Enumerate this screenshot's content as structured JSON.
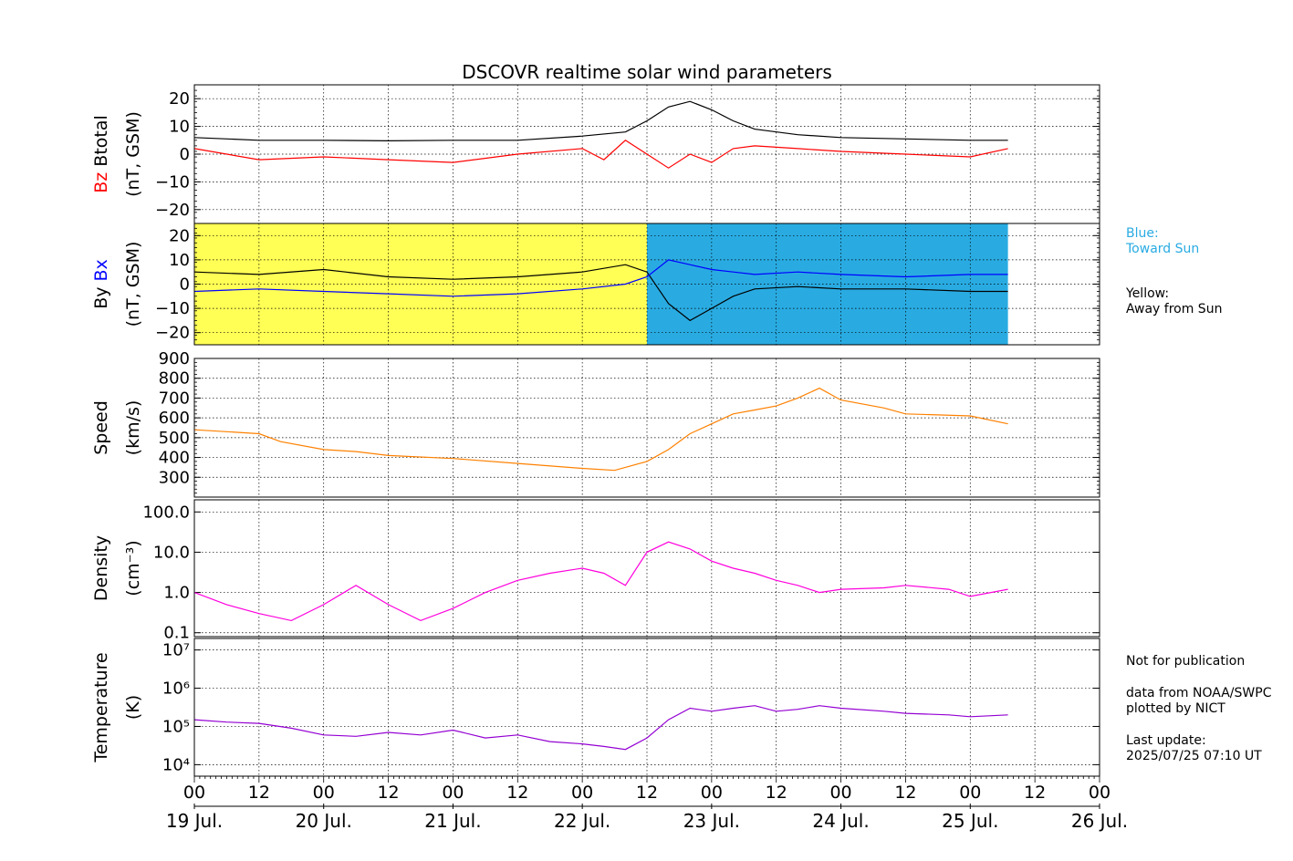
{
  "chart_data": {
    "type": "line",
    "title": "DSCOVR realtime solar wind parameters",
    "x_range_hours": [
      0,
      168
    ],
    "x_tick_labels": [
      "00",
      "12",
      "00",
      "12",
      "00",
      "12",
      "00",
      "12",
      "00",
      "12",
      "00",
      "12",
      "00",
      "12",
      "00"
    ],
    "x_date_labels": [
      "19 Jul.",
      "20 Jul.",
      "21 Jul.",
      "22 Jul.",
      "23 Jul.",
      "24 Jul.",
      "25 Jul.",
      "26 Jul."
    ],
    "data_end_hours": 151,
    "panels": [
      {
        "id": "btotal-bz",
        "ylabel_parts": [
          {
            "text": "Bz",
            "color": "#ff0000"
          },
          {
            "text": " Btotal",
            "color": "#000000"
          }
        ],
        "ylabel_unit": "(nT, GSM)",
        "scale": "linear",
        "ylim": [
          -25,
          25
        ],
        "yticks": [
          20,
          10,
          0,
          -10,
          -20
        ],
        "ytick_labels": [
          "20",
          "10",
          "0",
          "−10",
          "−20"
        ],
        "series": [
          {
            "color": "#000000",
            "points": [
              [
                0,
                6
              ],
              [
                12,
                5
              ],
              [
                24,
                5
              ],
              [
                36,
                4.8
              ],
              [
                48,
                5
              ],
              [
                60,
                5
              ],
              [
                72,
                6.5
              ],
              [
                80,
                8
              ],
              [
                84,
                12
              ],
              [
                88,
                17
              ],
              [
                92,
                19
              ],
              [
                96,
                16
              ],
              [
                100,
                12
              ],
              [
                104,
                9
              ],
              [
                112,
                7
              ],
              [
                120,
                6
              ],
              [
                132,
                5.5
              ],
              [
                144,
                5
              ],
              [
                151,
                5
              ]
            ]
          },
          {
            "color": "#ff0000",
            "points": [
              [
                0,
                2
              ],
              [
                12,
                -2
              ],
              [
                24,
                -1
              ],
              [
                36,
                -2
              ],
              [
                48,
                -3
              ],
              [
                60,
                0
              ],
              [
                72,
                2
              ],
              [
                76,
                -2
              ],
              [
                80,
                5
              ],
              [
                84,
                0
              ],
              [
                88,
                -5
              ],
              [
                92,
                0
              ],
              [
                96,
                -3
              ],
              [
                100,
                2
              ],
              [
                104,
                3
              ],
              [
                112,
                2
              ],
              [
                120,
                1
              ],
              [
                132,
                0
              ],
              [
                144,
                -1
              ],
              [
                151,
                2
              ]
            ]
          }
        ]
      },
      {
        "id": "by-bx",
        "ylabel_parts": [
          {
            "text": "By",
            "color": "#000000"
          },
          {
            "text": " Bx",
            "color": "#0000ff"
          }
        ],
        "ylabel_unit": "(nT, GSM)",
        "scale": "linear",
        "ylim": [
          -25,
          25
        ],
        "yticks": [
          20,
          10,
          0,
          -10,
          -20
        ],
        "ytick_labels": [
          "20",
          "10",
          "0",
          "−10",
          "−20"
        ],
        "sector_bands": [
          {
            "from": 0,
            "to": 84,
            "color": "#ffff55"
          },
          {
            "from": 84,
            "to": 151,
            "color": "#29abe2"
          }
        ],
        "series": [
          {
            "color": "#000000",
            "points": [
              [
                0,
                5
              ],
              [
                12,
                4
              ],
              [
                24,
                6
              ],
              [
                36,
                3
              ],
              [
                48,
                2
              ],
              [
                60,
                3
              ],
              [
                72,
                5
              ],
              [
                80,
                8
              ],
              [
                84,
                5
              ],
              [
                88,
                -8
              ],
              [
                92,
                -15
              ],
              [
                96,
                -10
              ],
              [
                100,
                -5
              ],
              [
                104,
                -2
              ],
              [
                112,
                -1
              ],
              [
                120,
                -2
              ],
              [
                132,
                -2
              ],
              [
                144,
                -3
              ],
              [
                151,
                -3
              ]
            ]
          },
          {
            "color": "#0000ff",
            "points": [
              [
                0,
                -3
              ],
              [
                12,
                -2
              ],
              [
                24,
                -3
              ],
              [
                36,
                -4
              ],
              [
                48,
                -5
              ],
              [
                60,
                -4
              ],
              [
                72,
                -2
              ],
              [
                80,
                0
              ],
              [
                84,
                3
              ],
              [
                88,
                10
              ],
              [
                92,
                8
              ],
              [
                96,
                6
              ],
              [
                100,
                5
              ],
              [
                104,
                4
              ],
              [
                112,
                5
              ],
              [
                120,
                4
              ],
              [
                132,
                3
              ],
              [
                144,
                4
              ],
              [
                151,
                4
              ]
            ]
          }
        ]
      },
      {
        "id": "speed",
        "ylabel_parts": [
          {
            "text": "Speed",
            "color": "#000000"
          }
        ],
        "ylabel_unit": "(km/s)",
        "scale": "linear",
        "ylim": [
          200,
          900
        ],
        "yticks": [
          900,
          800,
          700,
          600,
          500,
          400,
          300
        ],
        "ytick_labels": [
          "900",
          "800",
          "700",
          "600",
          "500",
          "400",
          "300"
        ],
        "series": [
          {
            "color": "#ff8000",
            "points": [
              [
                0,
                540
              ],
              [
                6,
                530
              ],
              [
                12,
                520
              ],
              [
                16,
                480
              ],
              [
                24,
                440
              ],
              [
                30,
                430
              ],
              [
                36,
                410
              ],
              [
                48,
                395
              ],
              [
                60,
                370
              ],
              [
                72,
                345
              ],
              [
                78,
                335
              ],
              [
                84,
                380
              ],
              [
                88,
                440
              ],
              [
                92,
                520
              ],
              [
                96,
                570
              ],
              [
                100,
                620
              ],
              [
                104,
                640
              ],
              [
                108,
                660
              ],
              [
                112,
                700
              ],
              [
                116,
                750
              ],
              [
                120,
                690
              ],
              [
                128,
                650
              ],
              [
                132,
                620
              ],
              [
                144,
                610
              ],
              [
                151,
                570
              ]
            ]
          }
        ]
      },
      {
        "id": "density",
        "ylabel_parts": [
          {
            "text": "Density",
            "color": "#000000"
          }
        ],
        "ylabel_unit": "(cm⁻³)",
        "scale": "log",
        "ylim": [
          0.08,
          200
        ],
        "yticks": [
          100,
          10,
          1,
          0.1
        ],
        "ytick_labels": [
          "100.0",
          "10.0",
          "1.0",
          "0.1"
        ],
        "series": [
          {
            "color": "#ff00dd",
            "points": [
              [
                0,
                1
              ],
              [
                6,
                0.5
              ],
              [
                12,
                0.3
              ],
              [
                18,
                0.2
              ],
              [
                24,
                0.5
              ],
              [
                30,
                1.5
              ],
              [
                36,
                0.5
              ],
              [
                42,
                0.2
              ],
              [
                48,
                0.4
              ],
              [
                54,
                1
              ],
              [
                60,
                2
              ],
              [
                66,
                3
              ],
              [
                72,
                4
              ],
              [
                76,
                3
              ],
              [
                80,
                1.5
              ],
              [
                84,
                10
              ],
              [
                88,
                18
              ],
              [
                92,
                12
              ],
              [
                96,
                6
              ],
              [
                100,
                4
              ],
              [
                104,
                3
              ],
              [
                108,
                2
              ],
              [
                112,
                1.5
              ],
              [
                116,
                1
              ],
              [
                120,
                1.2
              ],
              [
                128,
                1.3
              ],
              [
                132,
                1.5
              ],
              [
                140,
                1.2
              ],
              [
                144,
                0.8
              ],
              [
                151,
                1.2
              ]
            ]
          }
        ]
      },
      {
        "id": "temperature",
        "ylabel_parts": [
          {
            "text": "Temperature",
            "color": "#000000"
          }
        ],
        "ylabel_unit": "(K)",
        "scale": "log",
        "ylim": [
          5000,
          20000000
        ],
        "yticks": [
          10000,
          100000,
          1000000,
          10000000
        ],
        "ytick_labels": [
          "10⁴",
          "10⁵",
          "10⁶",
          "10⁷"
        ],
        "series": [
          {
            "color": "#9400d3",
            "points": [
              [
                0,
                150000
              ],
              [
                6,
                130000
              ],
              [
                12,
                120000
              ],
              [
                18,
                90000
              ],
              [
                24,
                60000
              ],
              [
                30,
                55000
              ],
              [
                36,
                70000
              ],
              [
                42,
                60000
              ],
              [
                48,
                80000
              ],
              [
                54,
                50000
              ],
              [
                60,
                60000
              ],
              [
                66,
                40000
              ],
              [
                72,
                35000
              ],
              [
                76,
                30000
              ],
              [
                80,
                25000
              ],
              [
                84,
                50000
              ],
              [
                88,
                150000
              ],
              [
                92,
                300000
              ],
              [
                96,
                250000
              ],
              [
                100,
                300000
              ],
              [
                104,
                350000
              ],
              [
                108,
                250000
              ],
              [
                112,
                280000
              ],
              [
                116,
                350000
              ],
              [
                120,
                300000
              ],
              [
                128,
                250000
              ],
              [
                132,
                220000
              ],
              [
                140,
                200000
              ],
              [
                144,
                180000
              ],
              [
                151,
                200000
              ]
            ]
          }
        ]
      }
    ]
  },
  "legend": {
    "toward_label": "Blue:\nToward Sun",
    "toward_color": "#29abe2",
    "away_label": "Yellow:\nAway from Sun",
    "away_color": "#000000"
  },
  "notes": {
    "publication": "Not for publication",
    "credit": "data from NOAA/SWPC\nplotted by NICT",
    "update": "Last update:\n2025/07/25 07:10 UT"
  }
}
